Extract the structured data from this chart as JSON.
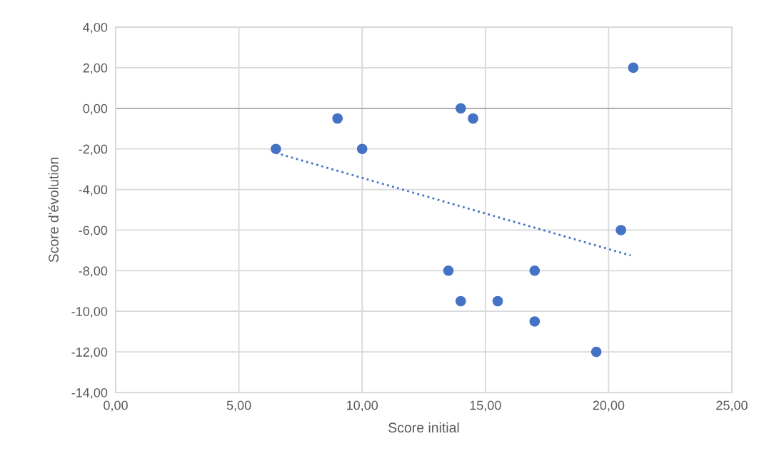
{
  "chart_data": {
    "type": "scatter",
    "xlabel": "Score initial",
    "ylabel": "Score d'évolution",
    "series": [
      {
        "color": "#4472c4",
        "marker": "circle",
        "x": [
          6.5,
          9,
          10,
          14,
          14.5,
          21,
          20.5,
          13.5,
          17,
          14,
          15.5,
          17,
          19.5
        ],
        "values": [
          -2,
          -0.5,
          -2,
          0,
          -0.5,
          2,
          -6,
          -8,
          -8,
          -9.5,
          -9.5,
          -10.5,
          -12
        ]
      },
      {
        "type": "line",
        "color": "#4472c4",
        "line_style": "dotted",
        "marker": "none",
        "x": [
          6.5,
          20.9
        ],
        "values": [
          -2.2,
          -7.25
        ]
      }
    ],
    "xlim": [
      0,
      25
    ],
    "ylim": [
      -14,
      4
    ],
    "xticks": [
      {
        "value": 0,
        "label": "0,00"
      },
      {
        "value": 5,
        "label": "5,00"
      },
      {
        "value": 10,
        "label": "10,00"
      },
      {
        "value": 15,
        "label": "15,00"
      },
      {
        "value": 20,
        "label": "20,00"
      },
      {
        "value": 25,
        "label": "25,00"
      }
    ],
    "yticks": [
      {
        "value": -14,
        "label": "-14,00"
      },
      {
        "value": -12,
        "label": "-12,00"
      },
      {
        "value": -10,
        "label": "-10,00"
      },
      {
        "value": -8,
        "label": "-8,00"
      },
      {
        "value": -6,
        "label": "-6,00"
      },
      {
        "value": -4,
        "label": "-4,00"
      },
      {
        "value": -2,
        "label": "-2,00"
      },
      {
        "value": 0,
        "label": "0,00"
      },
      {
        "value": 2,
        "label": "2,00"
      },
      {
        "value": 4,
        "label": "4,00"
      }
    ],
    "ref_lines": [
      {
        "axis": "y",
        "value": 0,
        "color": "#a6a6a6"
      }
    ],
    "grid": true,
    "legend": false
  }
}
